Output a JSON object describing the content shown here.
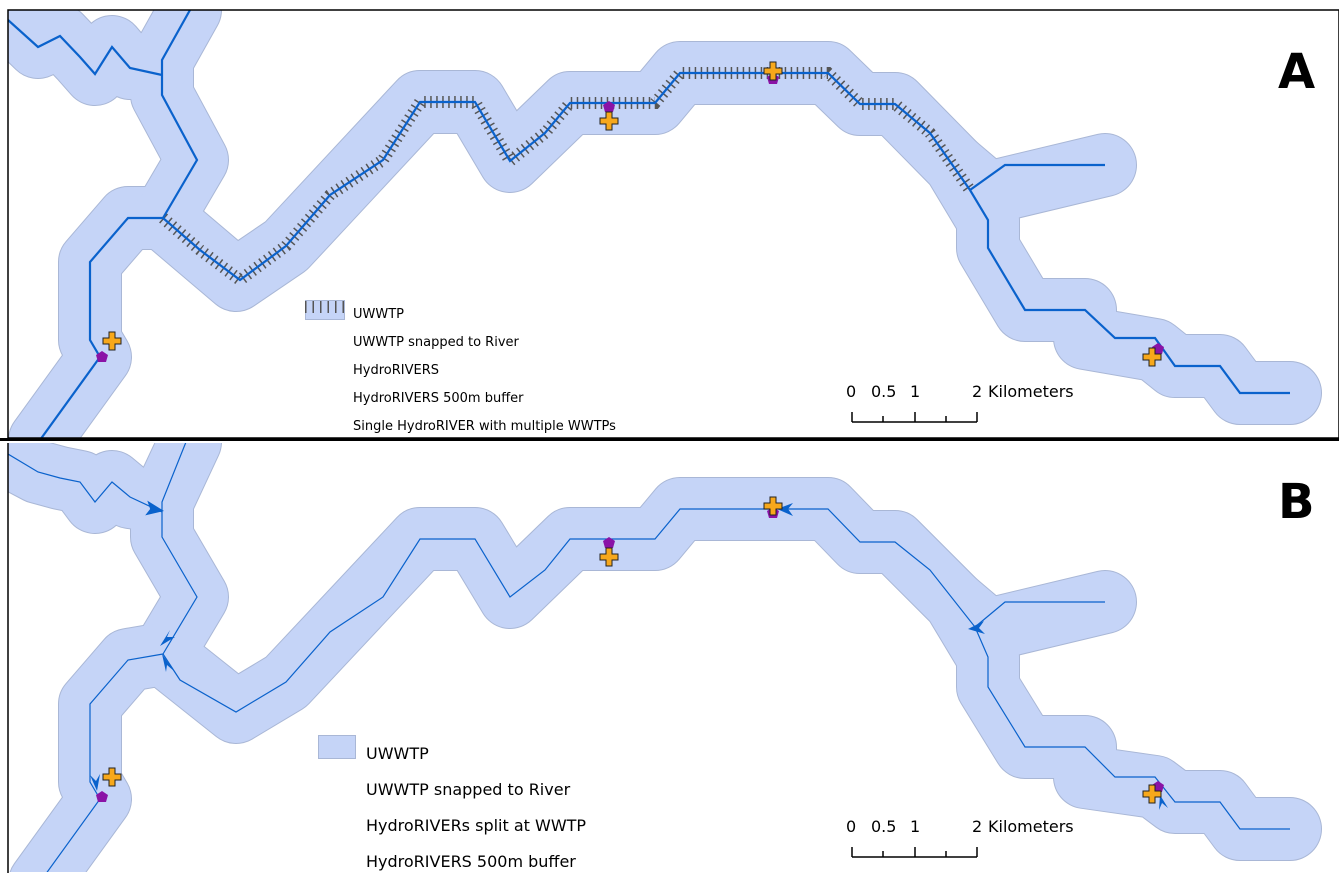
{
  "panel_a": {
    "letter": "A",
    "legend": [
      {
        "symbol": "plus-icon",
        "label": "UWWTP"
      },
      {
        "symbol": "pentagon-icon",
        "label": "UWWTP snapped to River"
      },
      {
        "symbol": "line-icon",
        "label": "HydroRIVERS"
      },
      {
        "symbol": "buffer-icon",
        "label": "HydroRIVERS 500m buffer"
      },
      {
        "symbol": "hatch-icon",
        "label": "Single HydroRIVER with multiple WWTPs"
      }
    ],
    "scalebar": {
      "ticks": [
        "0",
        "0.5",
        "1",
        "2"
      ],
      "unit": "Kilometers"
    }
  },
  "panel_b": {
    "letter": "B",
    "legend": [
      {
        "symbol": "plus-icon",
        "label": "UWWTP"
      },
      {
        "symbol": "pentagon-icon",
        "label": "UWWTP snapped to River"
      },
      {
        "symbol": "arrow-icon",
        "label": "HydroRIVERs split at WWTP"
      },
      {
        "symbol": "buffer-icon",
        "label": "HydroRIVERS 500m buffer"
      }
    ],
    "scalebar": {
      "ticks": [
        "0",
        "0.5",
        "1",
        "2"
      ],
      "unit": "Kilometers"
    }
  },
  "colors": {
    "buffer_fill": "#c5d4f7",
    "buffer_edge": "#a9b7d6",
    "river": "#0a62cc",
    "uwwtp_fill": "#f7a81b",
    "snapped": "#8a13a6",
    "hatch": "#555555"
  }
}
